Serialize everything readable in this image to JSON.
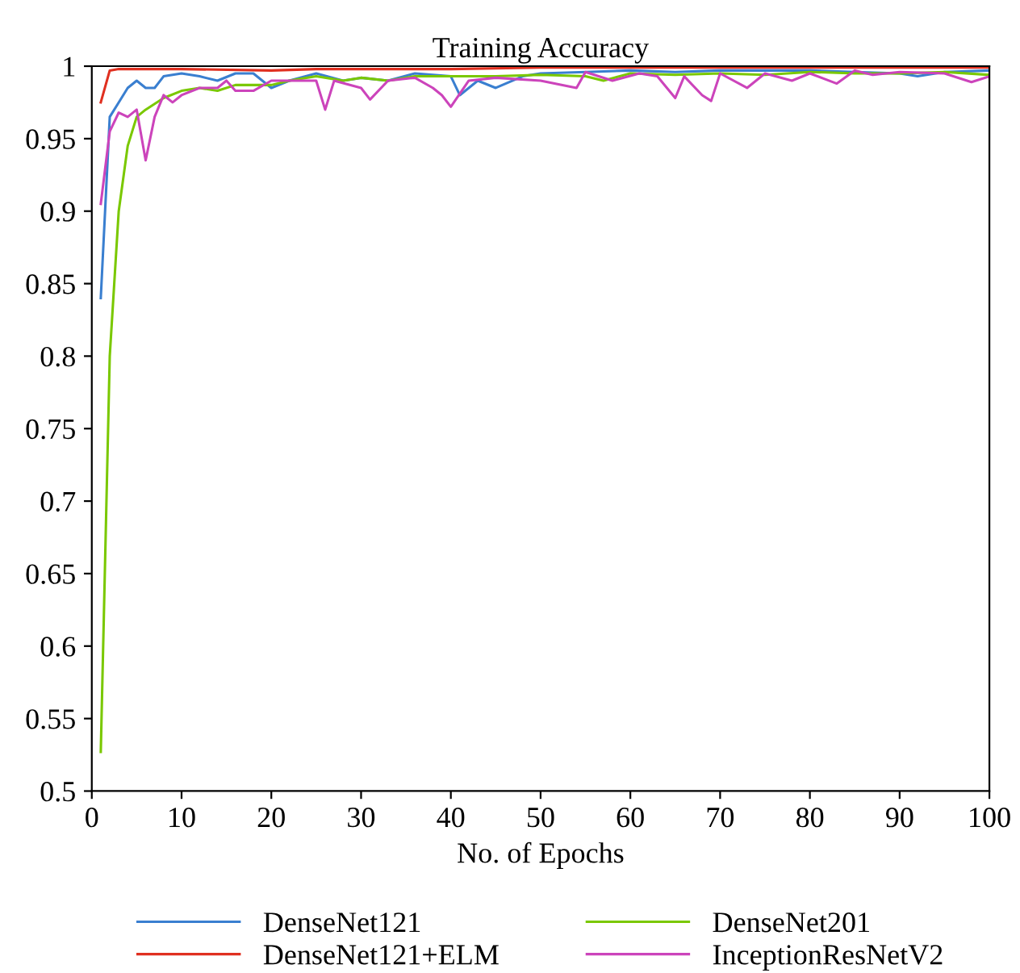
{
  "chart_data": {
    "type": "line",
    "title": "Training Accuracy",
    "xlabel": "No. of Epochs",
    "xlim": [
      0,
      100
    ],
    "xticks": [
      0,
      10,
      20,
      30,
      40,
      50,
      60,
      70,
      80,
      90,
      100
    ],
    "ylim": [
      0.5,
      1
    ],
    "yticks": [
      0.5,
      0.55,
      0.6,
      0.65,
      0.7,
      0.75,
      0.8,
      0.85,
      0.9,
      0.95,
      1
    ],
    "grid": false,
    "legend": "bottom",
    "marker": "none",
    "line_style": "solid",
    "series": [
      {
        "name": "DenseNet121",
        "color": "#3a7fd0",
        "x": [
          1,
          2,
          3,
          4,
          5,
          6,
          7,
          8,
          10,
          12,
          14,
          16,
          18,
          20,
          22,
          25,
          28,
          30,
          33,
          36,
          40,
          41,
          43,
          45,
          48,
          50,
          55,
          60,
          65,
          70,
          75,
          80,
          85,
          90,
          92,
          95,
          100
        ],
        "values": [
          0.84,
          0.965,
          0.975,
          0.985,
          0.99,
          0.985,
          0.985,
          0.993,
          0.995,
          0.993,
          0.99,
          0.995,
          0.995,
          0.985,
          0.99,
          0.995,
          0.99,
          0.992,
          0.99,
          0.995,
          0.993,
          0.98,
          0.99,
          0.985,
          0.993,
          0.995,
          0.996,
          0.997,
          0.996,
          0.997,
          0.997,
          0.997,
          0.996,
          0.995,
          0.993,
          0.996,
          0.997
        ]
      },
      {
        "name": "DenseNet121+ELM",
        "color": "#e03020",
        "x": [
          1,
          2,
          3,
          10,
          20,
          25,
          30,
          40,
          50,
          60,
          70,
          80,
          90,
          100
        ],
        "values": [
          0.975,
          0.997,
          0.998,
          0.998,
          0.997,
          0.998,
          0.998,
          0.998,
          0.999,
          0.999,
          0.999,
          0.999,
          0.999,
          0.999
        ]
      },
      {
        "name": "DenseNet201",
        "color": "#7ac800",
        "x": [
          1,
          2,
          3,
          4,
          5,
          6,
          8,
          10,
          12,
          14,
          16,
          18,
          20,
          22,
          25,
          28,
          30,
          33,
          36,
          40,
          45,
          50,
          55,
          57,
          60,
          65,
          70,
          75,
          80,
          85,
          90,
          95,
          100
        ],
        "values": [
          0.527,
          0.8,
          0.9,
          0.945,
          0.965,
          0.97,
          0.978,
          0.983,
          0.985,
          0.983,
          0.987,
          0.987,
          0.987,
          0.99,
          0.993,
          0.99,
          0.992,
          0.99,
          0.993,
          0.993,
          0.993,
          0.994,
          0.993,
          0.99,
          0.995,
          0.994,
          0.995,
          0.994,
          0.996,
          0.995,
          0.995,
          0.996,
          0.994
        ]
      },
      {
        "name": "InceptionResNetV2",
        "color": "#cc44bb",
        "x": [
          1,
          2,
          3,
          4,
          5,
          6,
          7,
          8,
          9,
          10,
          12,
          14,
          15,
          16,
          18,
          20,
          22,
          25,
          26,
          27,
          30,
          31,
          33,
          36,
          38,
          39,
          40,
          42,
          45,
          50,
          54,
          55,
          58,
          61,
          63,
          65,
          66,
          68,
          69,
          70,
          73,
          75,
          78,
          80,
          83,
          85,
          87,
          90,
          95,
          98,
          100
        ],
        "values": [
          0.905,
          0.955,
          0.968,
          0.965,
          0.97,
          0.935,
          0.965,
          0.98,
          0.975,
          0.98,
          0.985,
          0.985,
          0.99,
          0.983,
          0.983,
          0.99,
          0.99,
          0.99,
          0.97,
          0.99,
          0.985,
          0.977,
          0.99,
          0.992,
          0.985,
          0.98,
          0.972,
          0.99,
          0.992,
          0.99,
          0.985,
          0.996,
          0.99,
          0.995,
          0.993,
          0.978,
          0.993,
          0.98,
          0.976,
          0.995,
          0.985,
          0.995,
          0.99,
          0.995,
          0.988,
          0.997,
          0.994,
          0.996,
          0.995,
          0.989,
          0.993
        ]
      }
    ]
  }
}
